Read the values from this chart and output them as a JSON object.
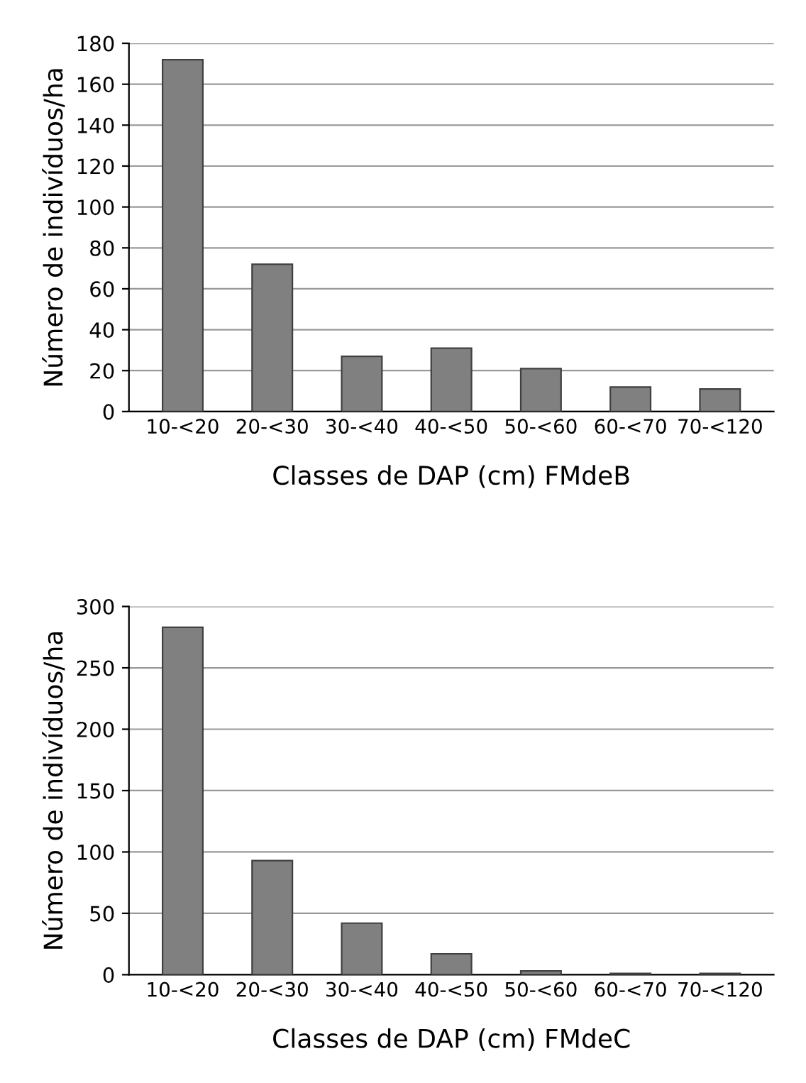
{
  "chart_data": [
    {
      "type": "bar",
      "xlabel": "Classes de DAP (cm) FMdeB",
      "ylabel": "Número de indivíduos/ha",
      "categories": [
        "10-<20",
        "20-<30",
        "30-<40",
        "40-<50",
        "50-<60",
        "60-<70",
        "70-<120"
      ],
      "values": [
        172,
        72,
        27,
        31,
        21,
        12,
        11
      ],
      "color": "#808080",
      "ylim": [
        0,
        180
      ],
      "yticks": [
        0,
        20,
        40,
        60,
        80,
        100,
        120,
        140,
        160,
        180
      ],
      "grid": "y",
      "legend": false
    },
    {
      "type": "bar",
      "xlabel": "Classes de DAP (cm) FMdeC",
      "ylabel": "Número de indivíduos/ha",
      "categories": [
        "10-<20",
        "20-<30",
        "30-<40",
        "40-<50",
        "50-<60",
        "60-<70",
        "70-<120"
      ],
      "values": [
        283,
        93,
        42,
        17,
        3,
        1,
        1
      ],
      "color": "#808080",
      "ylim": [
        0,
        300
      ],
      "yticks": [
        0,
        50,
        100,
        150,
        200,
        250,
        300
      ],
      "grid": "y",
      "legend": false
    }
  ]
}
